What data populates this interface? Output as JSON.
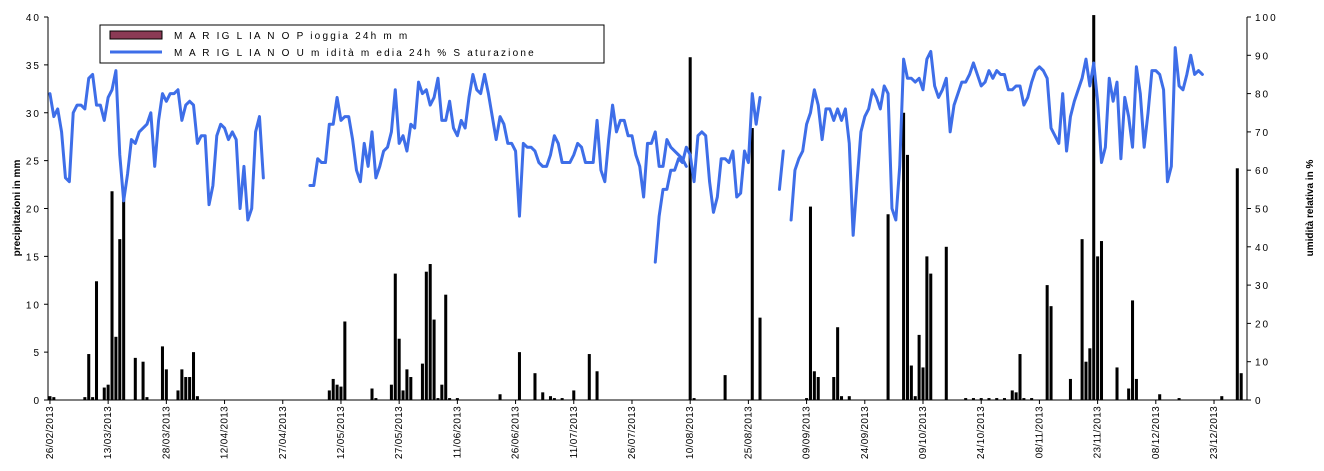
{
  "chart_data": {
    "type": "bar",
    "legend_position": "top-left",
    "grid": false,
    "ylabel_left": "precipitazioni in mm",
    "ylabel_right": "umidità relativa in %",
    "ylim_left": [
      0,
      40
    ],
    "ylim_right": [
      0,
      100
    ],
    "yticks_left": [
      "0",
      "5",
      "10",
      "15",
      "20",
      "25",
      "30",
      "35",
      "40"
    ],
    "yticks_right": [
      "0",
      "10",
      "20",
      "30",
      "40",
      "50",
      "60",
      "70",
      "80",
      "90",
      "100"
    ],
    "x_start_date": "2013-02-26",
    "x_end_date": "2013-12-31",
    "x_tick_labels": [
      "26/02/2013",
      "13/03/2013",
      "28/03/2013",
      "12/04/2013",
      "27/04/2013",
      "12/05/2013",
      "27/05/2013",
      "11/06/2013",
      "26/06/2013",
      "11/07/2013",
      "26/07/2013",
      "10/08/2013",
      "25/08/2013",
      "09/09/2013",
      "24/09/2013",
      "09/10/2013",
      "24/10/2013",
      "08/11/2013",
      "23/11/2013",
      "08/12/2013",
      "23/12/2013"
    ],
    "series": [
      {
        "name": "M A R IG L IA N O  P ioggia 24h  m m",
        "axis": "left",
        "kind": "bar",
        "color": "#8b3a55",
        "points": [
          [
            "2013-02-26",
            0.4
          ],
          [
            "2013-02-27",
            0.3
          ],
          [
            "2013-03-07",
            0.3
          ],
          [
            "2013-03-08",
            4.8
          ],
          [
            "2013-03-09",
            0.3
          ],
          [
            "2013-03-10",
            12.4
          ],
          [
            "2013-03-12",
            1.3
          ],
          [
            "2013-03-13",
            1.6
          ],
          [
            "2013-03-14",
            21.8
          ],
          [
            "2013-03-15",
            6.6
          ],
          [
            "2013-03-16",
            16.8
          ],
          [
            "2013-03-17",
            22.0
          ],
          [
            "2013-03-20",
            4.4
          ],
          [
            "2013-03-22",
            4.0
          ],
          [
            "2013-03-23",
            0.3
          ],
          [
            "2013-03-27",
            5.6
          ],
          [
            "2013-03-28",
            3.2
          ],
          [
            "2013-03-31",
            1.0
          ],
          [
            "2013-04-01",
            3.2
          ],
          [
            "2013-04-02",
            2.4
          ],
          [
            "2013-04-03",
            2.4
          ],
          [
            "2013-04-04",
            5.0
          ],
          [
            "2013-04-05",
            0.4
          ],
          [
            "2013-05-09",
            1.0
          ],
          [
            "2013-05-10",
            2.2
          ],
          [
            "2013-05-11",
            1.6
          ],
          [
            "2013-05-12",
            1.4
          ],
          [
            "2013-05-13",
            8.2
          ],
          [
            "2013-05-20",
            1.2
          ],
          [
            "2013-05-21",
            0.2
          ],
          [
            "2013-05-25",
            1.6
          ],
          [
            "2013-05-26",
            13.2
          ],
          [
            "2013-05-27",
            6.4
          ],
          [
            "2013-05-28",
            1.0
          ],
          [
            "2013-05-29",
            3.2
          ],
          [
            "2013-05-30",
            2.4
          ],
          [
            "2013-06-02",
            3.8
          ],
          [
            "2013-06-03",
            13.4
          ],
          [
            "2013-06-04",
            14.2
          ],
          [
            "2013-06-05",
            8.4
          ],
          [
            "2013-06-06",
            0.2
          ],
          [
            "2013-06-07",
            1.6
          ],
          [
            "2013-06-08",
            11.0
          ],
          [
            "2013-06-09",
            0.2
          ],
          [
            "2013-06-11",
            0.2
          ],
          [
            "2013-06-22",
            0.6
          ],
          [
            "2013-06-27",
            5.0
          ],
          [
            "2013-07-01",
            2.8
          ],
          [
            "2013-07-03",
            0.8
          ],
          [
            "2013-07-05",
            0.4
          ],
          [
            "2013-07-06",
            0.2
          ],
          [
            "2013-07-08",
            0.2
          ],
          [
            "2013-07-11",
            1.0
          ],
          [
            "2013-07-15",
            4.8
          ],
          [
            "2013-07-17",
            3.0
          ],
          [
            "2013-08-10",
            35.8
          ],
          [
            "2013-08-11",
            0.2
          ],
          [
            "2013-08-19",
            2.6
          ],
          [
            "2013-08-26",
            28.4
          ],
          [
            "2013-08-28",
            8.6
          ],
          [
            "2013-09-09",
            0.2
          ],
          [
            "2013-09-10",
            20.2
          ],
          [
            "2013-09-11",
            3.0
          ],
          [
            "2013-09-12",
            2.4
          ],
          [
            "2013-09-16",
            2.4
          ],
          [
            "2013-09-17",
            7.6
          ],
          [
            "2013-09-18",
            0.4
          ],
          [
            "2013-09-20",
            0.4
          ],
          [
            "2013-09-30",
            19.4
          ],
          [
            "2013-10-04",
            30.0
          ],
          [
            "2013-10-05",
            25.6
          ],
          [
            "2013-10-06",
            3.6
          ],
          [
            "2013-10-07",
            0.4
          ],
          [
            "2013-10-08",
            6.8
          ],
          [
            "2013-10-09",
            3.4
          ],
          [
            "2013-10-10",
            15.0
          ],
          [
            "2013-10-11",
            13.2
          ],
          [
            "2013-10-15",
            16.0
          ],
          [
            "2013-10-20",
            0.2
          ],
          [
            "2013-10-22",
            0.2
          ],
          [
            "2013-10-24",
            0.2
          ],
          [
            "2013-10-26",
            0.2
          ],
          [
            "2013-10-28",
            0.2
          ],
          [
            "2013-10-30",
            0.2
          ],
          [
            "2013-11-01",
            1.0
          ],
          [
            "2013-11-02",
            0.8
          ],
          [
            "2013-11-03",
            4.8
          ],
          [
            "2013-11-04",
            0.2
          ],
          [
            "2013-11-06",
            0.2
          ],
          [
            "2013-11-10",
            12.0
          ],
          [
            "2013-11-11",
            9.8
          ],
          [
            "2013-11-16",
            2.2
          ],
          [
            "2013-11-19",
            16.8
          ],
          [
            "2013-11-20",
            4.0
          ],
          [
            "2013-11-21",
            5.4
          ],
          [
            "2013-11-22",
            40.2
          ],
          [
            "2013-11-23",
            15.0
          ],
          [
            "2013-11-24",
            16.6
          ],
          [
            "2013-11-28",
            3.4
          ],
          [
            "2013-12-01",
            1.2
          ],
          [
            "2013-12-02",
            10.4
          ],
          [
            "2013-12-03",
            2.2
          ],
          [
            "2013-12-09",
            0.6
          ],
          [
            "2013-12-14",
            0.2
          ],
          [
            "2013-12-25",
            0.4
          ],
          [
            "2013-12-29",
            24.2
          ],
          [
            "2013-12-30",
            2.8
          ]
        ]
      },
      {
        "name": "M A R IG L IA N O  U m idità  m edia 24h  % S aturazione",
        "axis": "right",
        "kind": "line",
        "color": "#3e6ee8",
        "segments": [
          {
            "start": "2013-02-26",
            "values": [
              80,
              74,
              76,
              70,
              58,
              57,
              75,
              77,
              77,
              76,
              84,
              85,
              77,
              77,
              73,
              79,
              81,
              86,
              64,
              52,
              59,
              68,
              67,
              70,
              71,
              72,
              75,
              61,
              73,
              80,
              78,
              80,
              80,
              81,
              73,
              77,
              78,
              77,
              67,
              69,
              69,
              51,
              56,
              69,
              72,
              71,
              68,
              70,
              68,
              50,
              61,
              47,
              50,
              70,
              74,
              58
            ]
          },
          {
            "start": "2013-05-04",
            "values": [
              56,
              56,
              63,
              62,
              62,
              72,
              72,
              79,
              73,
              74,
              74,
              68,
              60,
              57,
              67,
              61,
              70,
              58,
              61,
              65,
              66,
              70,
              81,
              67,
              69,
              65,
              72,
              71,
              83,
              80,
              81,
              77,
              79,
              84,
              73,
              73,
              78,
              71,
              69,
              73,
              71,
              79,
              85,
              81,
              80,
              85,
              80,
              74,
              68,
              74,
              72,
              67,
              67,
              65,
              48,
              67,
              66,
              66,
              65,
              62,
              61,
              61,
              64,
              69,
              67,
              62,
              62,
              62,
              64,
              67,
              66,
              62,
              62,
              62,
              73,
              60,
              57,
              68,
              77,
              70,
              73,
              73,
              69,
              69,
              64,
              61,
              53,
              67,
              67,
              70,
              61,
              61,
              68,
              66,
              65,
              64,
              63,
              61
            ]
          },
          {
            "start": "2013-08-01",
            "values": [
              36,
              48,
              55,
              55,
              60,
              60,
              63,
              62,
              66,
              64,
              57,
              69,
              70,
              69,
              57,
              49,
              53,
              63,
              63,
              62,
              65,
              53,
              54,
              65,
              62,
              80,
              72,
              79
            ]
          },
          {
            "start": "2013-09-02",
            "values": [
              55,
              65
            ]
          },
          {
            "start": "2013-09-05",
            "values": [
              47,
              60,
              63,
              65,
              72,
              75,
              81,
              77,
              68,
              76,
              76,
              73,
              76,
              73,
              76,
              67,
              43,
              57,
              70,
              74,
              76,
              81,
              79,
              76,
              82,
              80,
              50,
              47,
              61,
              89,
              84,
              84,
              83,
              84,
              81,
              89,
              91,
              82,
              79,
              81,
              84,
              70,
              77,
              80,
              83,
              83,
              85,
              88,
              85,
              82,
              83,
              86,
              84,
              86,
              85,
              85,
              81,
              81,
              82,
              82,
              77,
              79,
              83,
              86,
              87,
              86,
              84,
              71,
              69,
              67,
              80,
              65,
              74,
              78,
              81,
              84,
              89,
              82,
              88,
              78,
              62,
              66,
              84,
              78,
              83,
              63,
              79,
              74,
              66,
              87,
              80,
              66,
              75,
              86,
              86,
              85,
              81,
              57,
              61,
              92,
              82,
              81,
              85,
              90,
              85,
              86,
              85
            ]
          }
        ]
      }
    ]
  }
}
